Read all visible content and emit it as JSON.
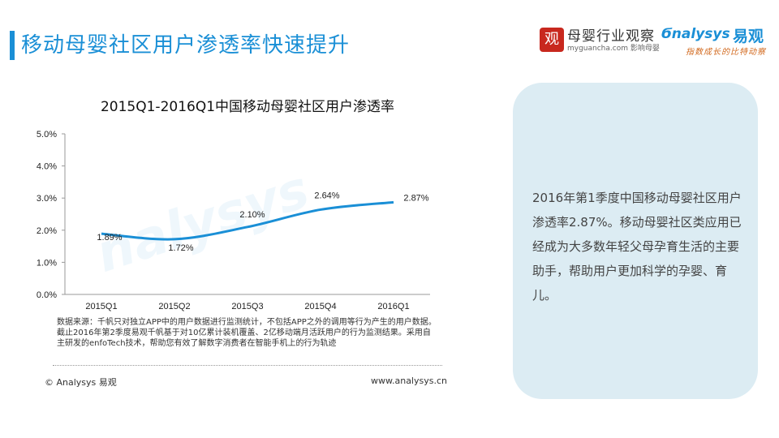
{
  "page": {
    "title": "移动母婴社区用户渗透率快速提升"
  },
  "logos": {
    "seal_char": "观",
    "muying_name": "母婴行业观察",
    "muying_url": "myguancha.com 影响母婴",
    "analysys": "nalysys",
    "yiguan": "易观",
    "slogan": "指数成长的比特动察"
  },
  "chart_data": {
    "type": "line",
    "title": "2015Q1-2016Q1中国移动母婴社区用户渗透率",
    "categories": [
      "2015Q1",
      "2015Q2",
      "2015Q3",
      "2015Q4",
      "2016Q1"
    ],
    "values": [
      1.89,
      1.72,
      2.1,
      2.64,
      2.87
    ],
    "data_labels": [
      "1.89%",
      "1.72%",
      "2.10%",
      "2.64%",
      "2.87%"
    ],
    "ylim": [
      0,
      5
    ],
    "yticks": [
      "0.0%",
      "1.0%",
      "2.0%",
      "3.0%",
      "4.0%",
      "5.0%"
    ],
    "series_color": "#1a8fd6",
    "grid": false,
    "watermark": "nalysys"
  },
  "source_note": "数据来源：千帆只对独立APP中的用户数据进行监测统计，不包括APP之外的调用等行为产生的用户数据。截止2016年第2季度易观千帆基于对10亿累计装机覆盖、2亿移动端月活跃用户的行为监测结果。采用自主研发的enfoTech技术，帮助您有效了解数字消费者在智能手机上的行为轨迹",
  "footer": {
    "copyright": "© Analysys 易观",
    "website": "www.analysys.cn"
  },
  "sidebox": {
    "text": "2016年第1季度中国移动母婴社区用户渗透率2.87%。移动母婴社区类应用已经成为大多数年轻父母孕育生活的主要助手，帮助用户更加科学的孕婴、育儿。"
  }
}
